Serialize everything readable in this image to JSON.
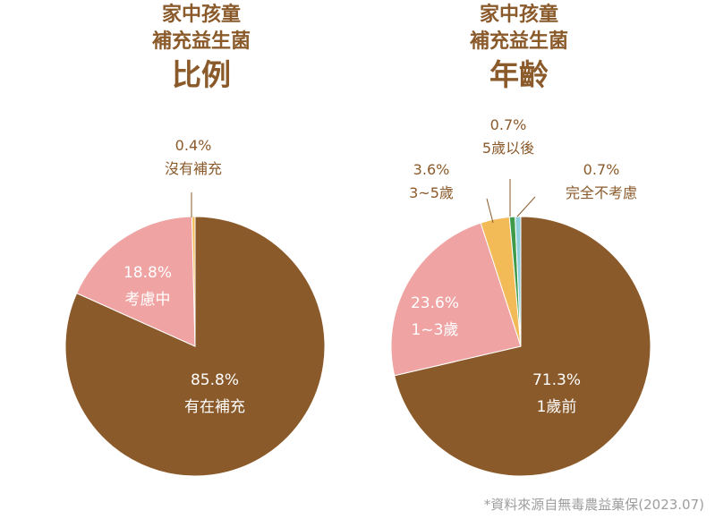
{
  "chart_data": [
    {
      "type": "pie",
      "title_lines": [
        "家中孩童",
        "補充益生菌"
      ],
      "title_big": "比例",
      "slices": [
        {
          "label": "有在補充",
          "value": 85.8,
          "display": "85.8%",
          "color": "#8b5a2b"
        },
        {
          "label": "考慮中",
          "value": 18.8,
          "display": "18.8%",
          "color": "#f0a3a3"
        },
        {
          "label": "沒有補充",
          "value": 0.4,
          "display": "0.4%",
          "color": "#f3bb57"
        }
      ]
    },
    {
      "type": "pie",
      "title_lines": [
        "家中孩童",
        "補充益生菌"
      ],
      "title_big": "年齡",
      "slices": [
        {
          "label": "1歲前",
          "value": 71.3,
          "display": "71.3%",
          "color": "#8b5a2b"
        },
        {
          "label": "1~3歲",
          "value": 23.6,
          "display": "23.6%",
          "color": "#f0a3a3"
        },
        {
          "label": "3~5歲",
          "value": 3.6,
          "display": "3.6%",
          "color": "#f3bb57"
        },
        {
          "label": "5歲以後",
          "value": 0.7,
          "display": "0.7%",
          "color": "#3f9a4a"
        },
        {
          "label": "完全不考慮",
          "value": 0.7,
          "display": "0.7%",
          "color": "#8fd0dc"
        }
      ]
    }
  ],
  "source": "*資料來源自無毒農益菓保(2023.07)"
}
